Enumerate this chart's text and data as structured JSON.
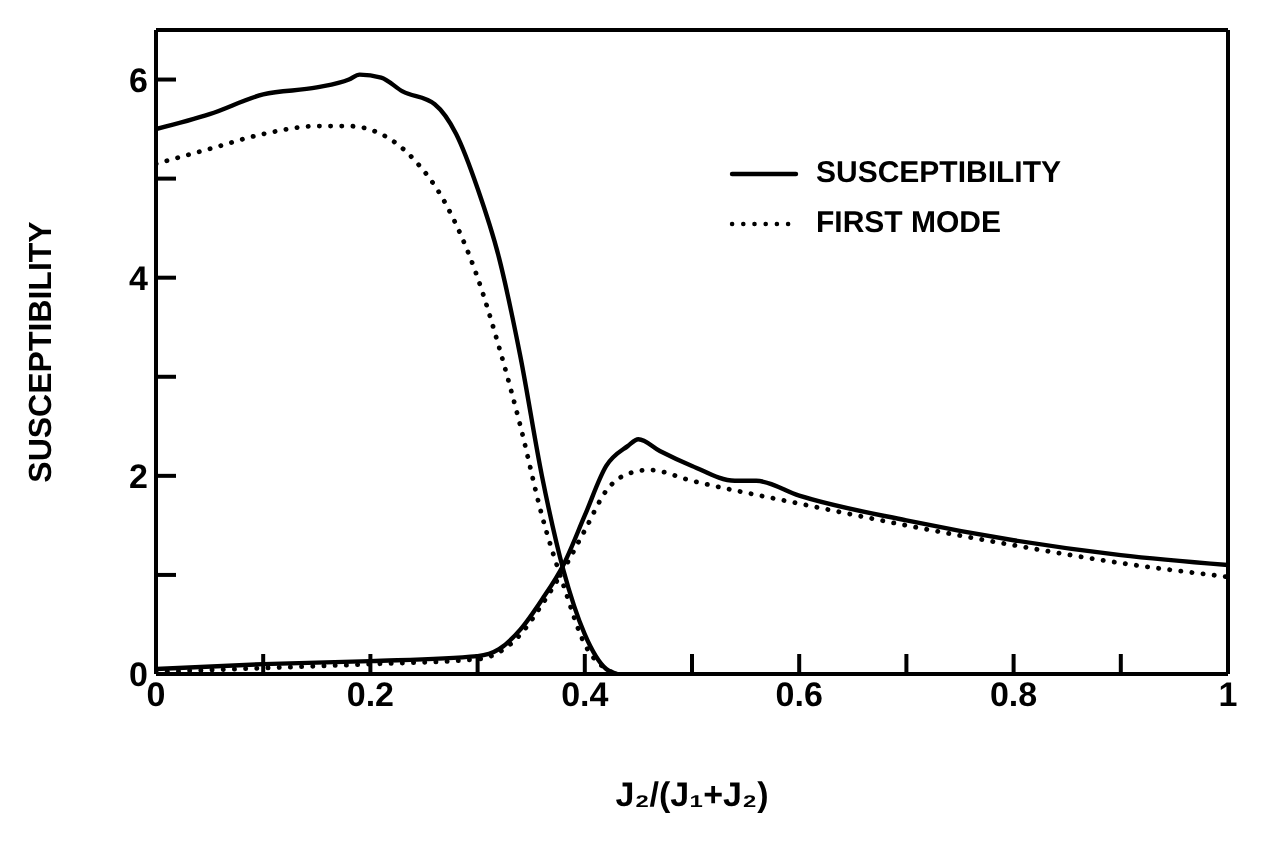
{
  "chart_data": {
    "type": "line",
    "ylabel": "SUSCEPTIBILITY",
    "xlabel": "J₂/(J₁+J₂)",
    "xlim": [
      0,
      1
    ],
    "ylim": [
      0,
      6.5
    ],
    "xticks": [
      0,
      {
        "value": 0.1,
        "label": null
      },
      0.2,
      {
        "value": 0.3,
        "label": null
      },
      0.4,
      {
        "value": 0.5,
        "label": null
      },
      0.6,
      {
        "value": 0.7,
        "label": null
      },
      0.8,
      {
        "value": 0.9,
        "label": null
      },
      {
        "value": 1,
        "label": "1"
      }
    ],
    "yticks": [
      0,
      {
        "value": 1,
        "label": null
      },
      2,
      {
        "value": 3,
        "label": null
      },
      4,
      {
        "value": 5,
        "label": null
      },
      6
    ],
    "legend": "top right",
    "marker": "none",
    "series": [
      {
        "name": "SUSCEPTIBILITY",
        "color": "#000000",
        "line_style": "solid",
        "x": [
          0,
          0.05,
          0.1,
          0.15,
          0.18,
          0.19,
          0.21,
          0.23,
          0.26,
          0.28,
          0.3,
          0.32,
          0.34,
          0.36,
          0.38,
          0.4,
          0.42,
          0.43
        ],
        "values": [
          5.5,
          5.65,
          5.85,
          5.92,
          6.0,
          6.05,
          6.02,
          5.88,
          5.75,
          5.45,
          4.9,
          4.2,
          3.2,
          2.0,
          1.05,
          0.4,
          0.05,
          0
        ]
      },
      {
        "color": "#000000",
        "line_style": "solid",
        "x": [
          0,
          0.1,
          0.2,
          0.3,
          0.32,
          0.34,
          0.36,
          0.38,
          0.4,
          0.42,
          0.44,
          0.45,
          0.47,
          0.5,
          0.54,
          0.56,
          0.6,
          0.7,
          0.8,
          0.9,
          1
        ],
        "values": [
          0.05,
          0.1,
          0.13,
          0.18,
          0.25,
          0.45,
          0.75,
          1.1,
          1.6,
          2.1,
          2.3,
          2.37,
          2.25,
          2.1,
          1.95,
          1.95,
          1.8,
          1.55,
          1.35,
          1.2,
          1.1
        ]
      },
      {
        "name": "FIRST MODE",
        "color": "#000000",
        "line_style": "dotted",
        "x": [
          0,
          0.05,
          0.1,
          0.15,
          0.18,
          0.21,
          0.24,
          0.27,
          0.3,
          0.32,
          0.34,
          0.36,
          0.38,
          0.4,
          0.42,
          0.43
        ],
        "values": [
          5.15,
          5.3,
          5.45,
          5.53,
          5.53,
          5.45,
          5.2,
          4.75,
          4.0,
          3.3,
          2.5,
          1.6,
          0.9,
          0.3,
          0.05,
          0
        ]
      },
      {
        "color": "#000000",
        "line_style": "dotted",
        "x": [
          0,
          0.1,
          0.2,
          0.3,
          0.32,
          0.34,
          0.36,
          0.38,
          0.4,
          0.42,
          0.44,
          0.46,
          0.5,
          0.6,
          0.7,
          0.8,
          0.9,
          1
        ],
        "values": [
          0.02,
          0.06,
          0.1,
          0.15,
          0.22,
          0.4,
          0.7,
          1.05,
          1.45,
          1.85,
          2.02,
          2.06,
          1.95,
          1.72,
          1.5,
          1.3,
          1.12,
          0.98
        ]
      }
    ]
  }
}
